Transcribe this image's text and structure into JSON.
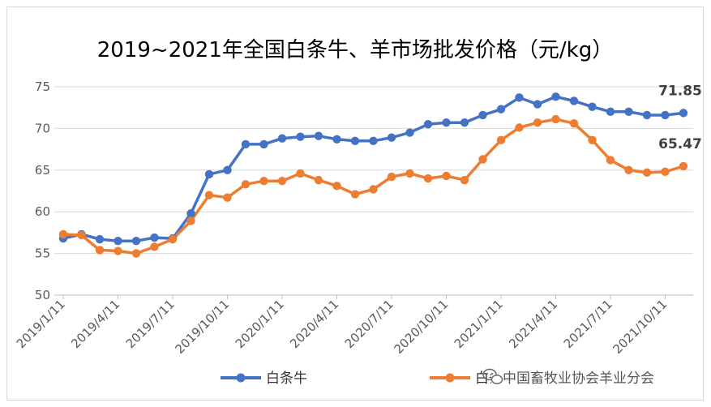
{
  "chart_data": {
    "type": "line",
    "title": "2019~2021年全国白条牛、羊市场批发价格（元/kg）",
    "ylim": [
      50,
      75
    ],
    "yticks": [
      "50",
      "55",
      "60",
      "65",
      "70",
      "75"
    ],
    "xtick_labels": [
      "2019/1/11",
      "2019/4/11",
      "2019/7/11",
      "2019/10/11",
      "2020/1/11",
      "2020/4/11",
      "2020/7/11",
      "2020/10/11",
      "2021/1/11",
      "2021/4/11",
      "2021/7/11",
      "2021/10/11"
    ],
    "grid": "horizontal",
    "legend_position": "bottom",
    "colors": {
      "series1": "#4472C4",
      "series2": "#ED7D31"
    },
    "series": [
      {
        "name": "白条牛",
        "values": [
          56.8,
          57.3,
          56.7,
          56.5,
          56.5,
          56.9,
          56.8,
          59.8,
          64.5,
          65.0,
          68.1,
          68.1,
          68.8,
          69.0,
          69.1,
          68.7,
          68.5,
          68.5,
          68.9,
          69.5,
          70.5,
          70.7,
          70.7,
          71.6,
          72.3,
          73.7,
          72.9,
          73.8,
          73.3,
          72.6,
          72.0,
          72.0,
          71.6,
          71.6,
          71.85
        ],
        "end_label": "71.85"
      },
      {
        "name": "白条羊",
        "values": [
          57.3,
          57.2,
          55.4,
          55.3,
          55.0,
          55.8,
          56.7,
          58.9,
          62.0,
          61.7,
          63.3,
          63.7,
          63.7,
          64.6,
          63.8,
          63.1,
          62.1,
          62.7,
          64.2,
          64.6,
          64.0,
          64.3,
          63.8,
          66.3,
          68.6,
          70.1,
          70.7,
          71.1,
          70.6,
          68.6,
          66.2,
          65.0,
          64.7,
          64.8,
          65.47
        ],
        "end_label": "65.47"
      }
    ]
  },
  "watermark": "中国畜牧业协会羊业分会",
  "icons": {
    "watermark_icon": "wechat-icon"
  }
}
